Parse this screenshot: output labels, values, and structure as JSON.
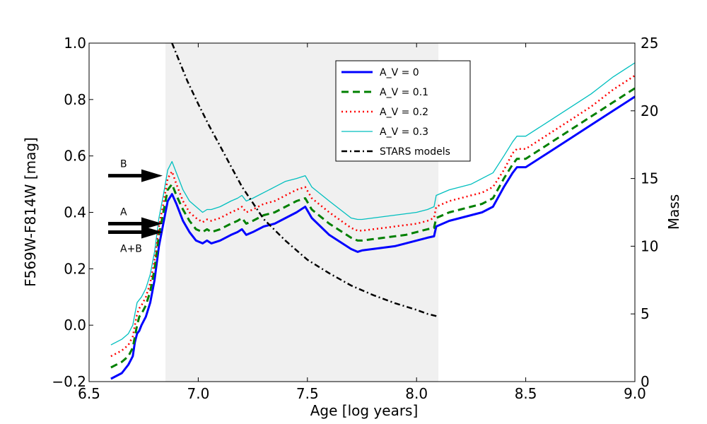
{
  "chart_data": {
    "type": "line",
    "xlabel": "Age [log years]",
    "ylabel": "F569W-F814W [mag]",
    "y2label": "Mass",
    "xlim": [
      6.5,
      9.0
    ],
    "ylim": [
      -0.2,
      1.0
    ],
    "y2lim": [
      0,
      25
    ],
    "xticks": [
      "6.5",
      "7.0",
      "7.5",
      "8.0",
      "8.5",
      "9.0"
    ],
    "yticks": [
      "−0.2",
      "0.0",
      "0.2",
      "0.4",
      "0.6",
      "0.8",
      "1.0"
    ],
    "y2ticks": [
      "0",
      "5",
      "10",
      "15",
      "20",
      "25"
    ],
    "shaded_region": [
      6.85,
      8.1
    ],
    "series": [
      {
        "name": "A_V = 0",
        "axis": "left",
        "color": "#0000ff",
        "style": "solid",
        "x": [
          6.6,
          6.65,
          6.68,
          6.7,
          6.71,
          6.72,
          6.73,
          6.74,
          6.76,
          6.78,
          6.8,
          6.82,
          6.84,
          6.86,
          6.88,
          6.9,
          6.93,
          6.96,
          6.99,
          7.02,
          7.04,
          7.06,
          7.1,
          7.15,
          7.18,
          7.2,
          7.22,
          7.25,
          7.3,
          7.35,
          7.4,
          7.45,
          7.49,
          7.52,
          7.6,
          7.7,
          7.73,
          7.75,
          7.8,
          7.85,
          7.9,
          7.95,
          8.0,
          8.05,
          8.08,
          8.09,
          8.15,
          8.2,
          8.25,
          8.3,
          8.35,
          8.4,
          8.44,
          8.46,
          8.5,
          8.6,
          8.7,
          8.8,
          8.9,
          9.0
        ],
        "y": [
          -0.19,
          -0.17,
          -0.14,
          -0.11,
          -0.06,
          -0.03,
          -0.02,
          0.0,
          0.03,
          0.08,
          0.16,
          0.28,
          0.36,
          0.44,
          0.465,
          0.43,
          0.37,
          0.33,
          0.3,
          0.29,
          0.3,
          0.29,
          0.3,
          0.32,
          0.33,
          0.34,
          0.32,
          0.33,
          0.35,
          0.36,
          0.38,
          0.4,
          0.42,
          0.38,
          0.32,
          0.27,
          0.26,
          0.265,
          0.27,
          0.275,
          0.28,
          0.29,
          0.3,
          0.31,
          0.315,
          0.35,
          0.37,
          0.38,
          0.39,
          0.4,
          0.42,
          0.49,
          0.54,
          0.56,
          0.56,
          0.61,
          0.66,
          0.71,
          0.76,
          0.81
        ]
      },
      {
        "name": "A_V = 0.1",
        "axis": "left",
        "color": "#008000",
        "style": "dashed",
        "x": [
          6.6,
          6.65,
          6.68,
          6.7,
          6.71,
          6.72,
          6.73,
          6.74,
          6.76,
          6.78,
          6.8,
          6.82,
          6.84,
          6.86,
          6.88,
          6.9,
          6.93,
          6.96,
          6.99,
          7.02,
          7.04,
          7.06,
          7.1,
          7.15,
          7.18,
          7.2,
          7.22,
          7.25,
          7.3,
          7.35,
          7.4,
          7.45,
          7.49,
          7.52,
          7.6,
          7.7,
          7.73,
          7.75,
          7.8,
          7.85,
          7.9,
          7.95,
          8.0,
          8.05,
          8.08,
          8.09,
          8.15,
          8.2,
          8.25,
          8.3,
          8.35,
          8.4,
          8.44,
          8.46,
          8.5,
          8.6,
          8.7,
          8.8,
          8.9,
          9.0
        ],
        "y": [
          -0.15,
          -0.13,
          -0.11,
          -0.08,
          -0.04,
          0.0,
          0.03,
          0.04,
          0.07,
          0.12,
          0.2,
          0.32,
          0.4,
          0.48,
          0.5,
          0.46,
          0.41,
          0.37,
          0.34,
          0.33,
          0.34,
          0.33,
          0.34,
          0.36,
          0.37,
          0.38,
          0.36,
          0.37,
          0.39,
          0.4,
          0.42,
          0.44,
          0.45,
          0.41,
          0.36,
          0.31,
          0.3,
          0.3,
          0.305,
          0.31,
          0.315,
          0.32,
          0.33,
          0.34,
          0.345,
          0.38,
          0.4,
          0.41,
          0.42,
          0.43,
          0.45,
          0.52,
          0.57,
          0.59,
          0.59,
          0.64,
          0.69,
          0.74,
          0.79,
          0.84
        ]
      },
      {
        "name": "A_V = 0.2",
        "axis": "left",
        "color": "#ff0000",
        "style": "dotted",
        "x": [
          6.6,
          6.65,
          6.68,
          6.7,
          6.71,
          6.72,
          6.73,
          6.74,
          6.76,
          6.78,
          6.8,
          6.82,
          6.84,
          6.86,
          6.88,
          6.9,
          6.93,
          6.96,
          6.99,
          7.02,
          7.04,
          7.06,
          7.1,
          7.15,
          7.18,
          7.2,
          7.22,
          7.25,
          7.3,
          7.35,
          7.4,
          7.45,
          7.49,
          7.52,
          7.6,
          7.7,
          7.73,
          7.75,
          7.8,
          7.85,
          7.9,
          7.95,
          8.0,
          8.05,
          8.08,
          8.09,
          8.15,
          8.2,
          8.25,
          8.3,
          8.35,
          8.4,
          8.44,
          8.46,
          8.5,
          8.6,
          8.7,
          8.8,
          8.9,
          9.0
        ],
        "y": [
          -0.11,
          -0.09,
          -0.07,
          -0.04,
          0.0,
          0.04,
          0.06,
          0.07,
          0.1,
          0.15,
          0.23,
          0.35,
          0.43,
          0.52,
          0.545,
          0.5,
          0.44,
          0.4,
          0.38,
          0.365,
          0.375,
          0.37,
          0.38,
          0.4,
          0.41,
          0.42,
          0.4,
          0.41,
          0.43,
          0.44,
          0.46,
          0.48,
          0.49,
          0.45,
          0.4,
          0.345,
          0.335,
          0.335,
          0.34,
          0.345,
          0.35,
          0.355,
          0.36,
          0.37,
          0.38,
          0.42,
          0.44,
          0.45,
          0.46,
          0.47,
          0.49,
          0.55,
          0.61,
          0.625,
          0.625,
          0.675,
          0.725,
          0.775,
          0.835,
          0.885
        ]
      },
      {
        "name": "A_V = 0.3",
        "axis": "left",
        "color": "#00bfbf",
        "style": "thin",
        "x": [
          6.6,
          6.65,
          6.68,
          6.7,
          6.71,
          6.72,
          6.73,
          6.74,
          6.76,
          6.78,
          6.8,
          6.82,
          6.84,
          6.86,
          6.88,
          6.9,
          6.93,
          6.96,
          6.99,
          7.02,
          7.04,
          7.06,
          7.1,
          7.15,
          7.18,
          7.2,
          7.22,
          7.25,
          7.3,
          7.35,
          7.4,
          7.45,
          7.49,
          7.52,
          7.6,
          7.7,
          7.73,
          7.75,
          7.8,
          7.85,
          7.9,
          7.95,
          8.0,
          8.05,
          8.08,
          8.09,
          8.15,
          8.2,
          8.25,
          8.3,
          8.35,
          8.4,
          8.44,
          8.46,
          8.5,
          8.6,
          8.7,
          8.8,
          8.9,
          9.0
        ],
        "y": [
          -0.07,
          -0.05,
          -0.03,
          0.0,
          0.04,
          0.08,
          0.09,
          0.1,
          0.13,
          0.18,
          0.26,
          0.38,
          0.46,
          0.55,
          0.58,
          0.54,
          0.48,
          0.44,
          0.42,
          0.4,
          0.41,
          0.41,
          0.42,
          0.44,
          0.45,
          0.46,
          0.44,
          0.45,
          0.47,
          0.49,
          0.51,
          0.52,
          0.53,
          0.49,
          0.44,
          0.38,
          0.375,
          0.375,
          0.38,
          0.385,
          0.39,
          0.395,
          0.4,
          0.41,
          0.42,
          0.46,
          0.48,
          0.49,
          0.5,
          0.52,
          0.54,
          0.6,
          0.65,
          0.67,
          0.67,
          0.72,
          0.77,
          0.82,
          0.88,
          0.93
        ]
      },
      {
        "name": "STARS models",
        "axis": "right",
        "color": "#000000",
        "style": "dashdot",
        "x": [
          6.88,
          6.95,
          7.0,
          7.05,
          7.1,
          7.15,
          7.2,
          7.25,
          7.3,
          7.4,
          7.5,
          7.6,
          7.7,
          7.8,
          7.9,
          8.0,
          8.05,
          8.1
        ],
        "y": [
          25.0,
          22.2,
          20.5,
          18.9,
          17.4,
          15.9,
          14.4,
          13.2,
          12.0,
          10.4,
          9.0,
          8.0,
          7.1,
          6.4,
          5.8,
          5.3,
          5.0,
          4.8
        ]
      }
    ],
    "annotations": [
      {
        "label": "B",
        "y": 0.53
      },
      {
        "label": "A",
        "y": 0.36
      },
      {
        "label": "A+B",
        "y": 0.33
      }
    ]
  }
}
